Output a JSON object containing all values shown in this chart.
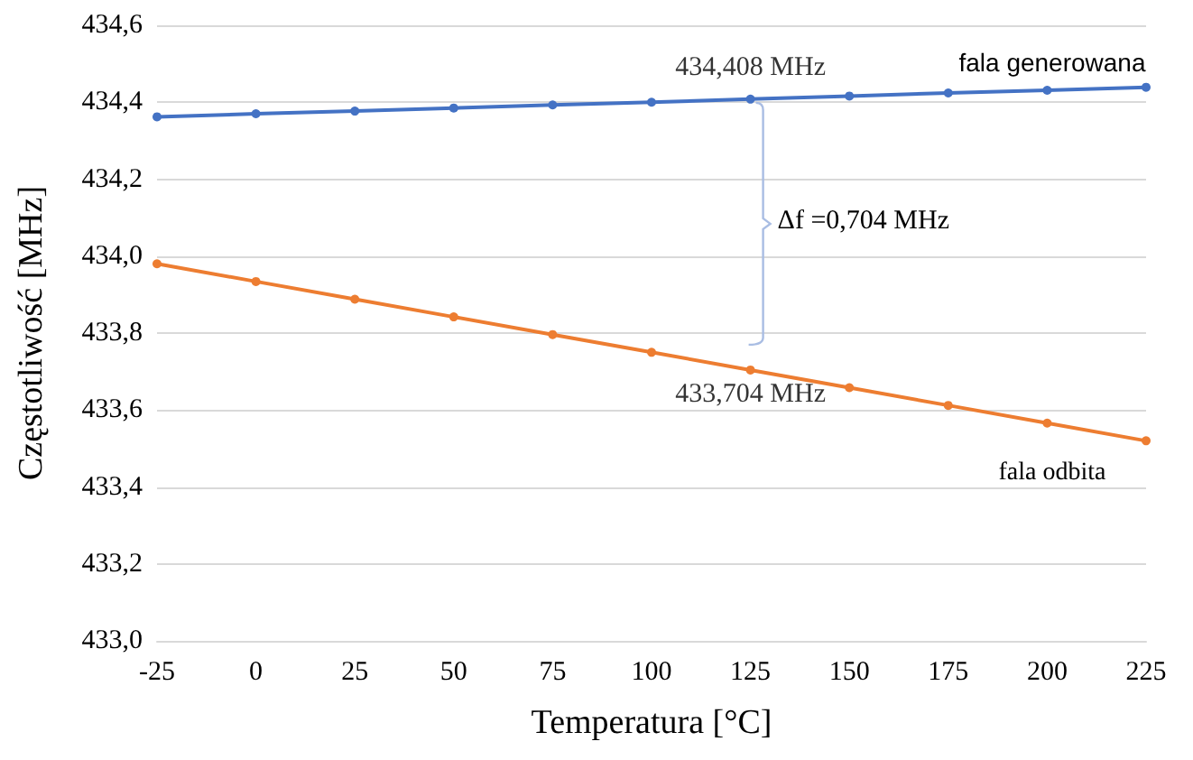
{
  "chart_data": {
    "type": "line",
    "xlabel": "Temperatura [°C]",
    "ylabel": "Częstotliwość [MHz]",
    "x": [
      -25,
      0,
      25,
      50,
      75,
      100,
      125,
      150,
      175,
      200,
      225
    ],
    "series": [
      {
        "name": "fala generowana",
        "color": "#4472c4",
        "values": [
          434.362,
          434.37,
          434.377,
          434.385,
          434.393,
          434.4,
          434.408,
          434.416,
          434.424,
          434.431,
          434.439
        ]
      },
      {
        "name": "fala odbita",
        "color": "#ed7d31",
        "values": [
          433.98,
          433.934,
          433.888,
          433.842,
          433.796,
          433.75,
          433.704,
          433.658,
          433.612,
          433.566,
          433.52
        ]
      }
    ],
    "xlim": [
      -25,
      225
    ],
    "xticks": [
      -25,
      0,
      25,
      50,
      75,
      100,
      125,
      150,
      175,
      200,
      225
    ],
    "ylim": [
      433.0,
      434.6
    ],
    "yticks": [
      {
        "value": 433.0,
        "label": "433,0"
      },
      {
        "value": 433.2,
        "label": "433,2"
      },
      {
        "value": 433.4,
        "label": "433,4"
      },
      {
        "value": 433.6,
        "label": "433,6"
      },
      {
        "value": 433.8,
        "label": "433,8"
      },
      {
        "value": 434.0,
        "label": "434,0"
      },
      {
        "value": 434.2,
        "label": "434,2"
      },
      {
        "value": 434.4,
        "label": "434,4"
      },
      {
        "value": 434.6,
        "label": "434,6"
      }
    ],
    "annotations": [
      {
        "text": "434,408 MHz",
        "x": 125,
        "y": 434.408
      },
      {
        "text": "433,704 MHz",
        "x": 125,
        "y": 433.704
      },
      "Δf =0,704 MHz"
    ],
    "grid": "y",
    "legend": false,
    "marker": "circle",
    "line_style": "solid"
  }
}
